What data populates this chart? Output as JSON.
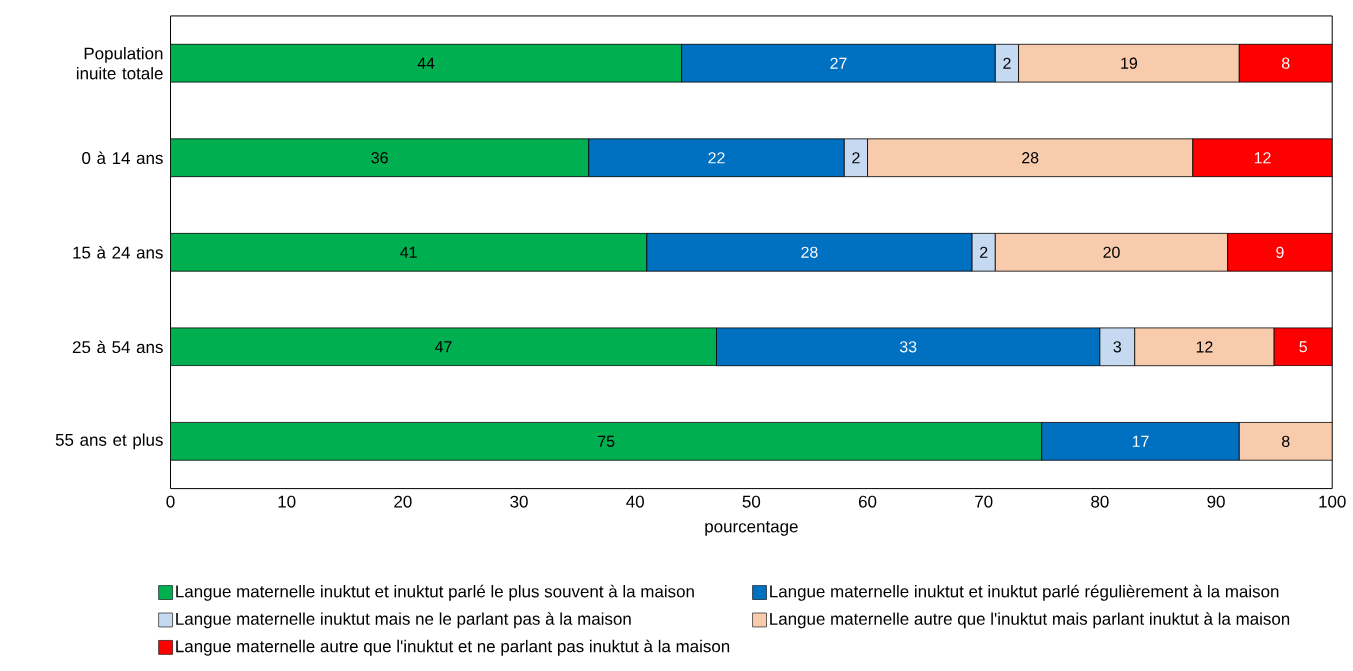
{
  "chart_data": {
    "type": "bar",
    "orientation": "horizontal",
    "stacked": true,
    "data_labels": true,
    "grid": false,
    "legend": "bottom",
    "xlabel": "pourcentage",
    "xlim": [
      0,
      100
    ],
    "xticks": [
      0,
      10,
      20,
      30,
      40,
      50,
      60,
      70,
      80,
      90,
      100
    ],
    "categories": [
      "Population inuite totale",
      "0 à 14 ans",
      "15 à 24 ans",
      "25 à 54 ans",
      "55 ans et plus"
    ],
    "series": [
      {
        "name": "Langue maternelle inuktut et inuktut parlé le plus souvent à la maison",
        "color": "#00b050",
        "values": [
          44,
          36,
          41,
          47,
          75
        ]
      },
      {
        "name": "Langue maternelle inuktut et inuktut parlé régulièrement à la maison",
        "color": "#0070c0",
        "values": [
          27,
          22,
          28,
          33,
          17
        ]
      },
      {
        "name": "Langue maternelle inuktut mais ne le parlant pas à la maison",
        "color": "#c5d9f1",
        "values": [
          2,
          2,
          2,
          3,
          null
        ]
      },
      {
        "name": "Langue maternelle autre que l'inuktut mais parlant inuktut à la maison",
        "color": "#f8cbad",
        "values": [
          19,
          28,
          20,
          12,
          8
        ]
      },
      {
        "name": "Langue maternelle autre que l'inuktut et ne parlant pas inuktut à la maison",
        "color": "#ff0000",
        "values": [
          8,
          12,
          9,
          5,
          null
        ]
      }
    ]
  }
}
